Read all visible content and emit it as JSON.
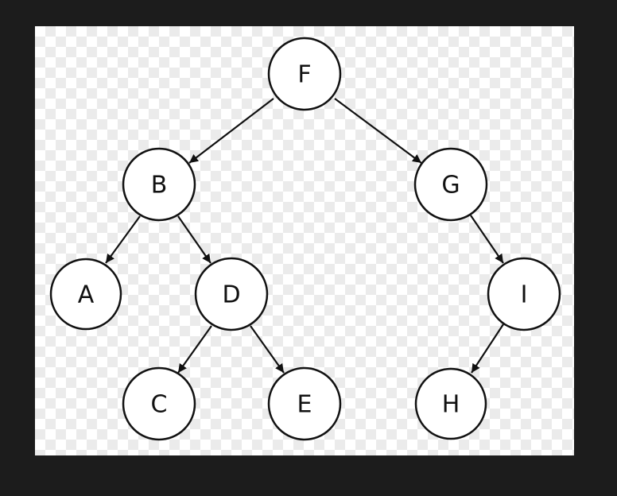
{
  "diagram": {
    "type": "binary-tree",
    "nodes": [
      {
        "id": "F",
        "label": "F"
      },
      {
        "id": "B",
        "label": "B"
      },
      {
        "id": "G",
        "label": "G"
      },
      {
        "id": "A",
        "label": "A"
      },
      {
        "id": "D",
        "label": "D"
      },
      {
        "id": "I",
        "label": "I"
      },
      {
        "id": "C",
        "label": "C"
      },
      {
        "id": "E",
        "label": "E"
      },
      {
        "id": "H",
        "label": "H"
      }
    ],
    "edges": [
      {
        "from": "F",
        "to": "B"
      },
      {
        "from": "F",
        "to": "G"
      },
      {
        "from": "B",
        "to": "A"
      },
      {
        "from": "B",
        "to": "D"
      },
      {
        "from": "D",
        "to": "C"
      },
      {
        "from": "D",
        "to": "E"
      },
      {
        "from": "G",
        "to": "I"
      },
      {
        "from": "I",
        "to": "H"
      }
    ]
  },
  "colors": {
    "frame": "#1c1c1c",
    "node_fill": "#ffffff",
    "stroke": "#111111",
    "checker": "#ebebeb"
  }
}
